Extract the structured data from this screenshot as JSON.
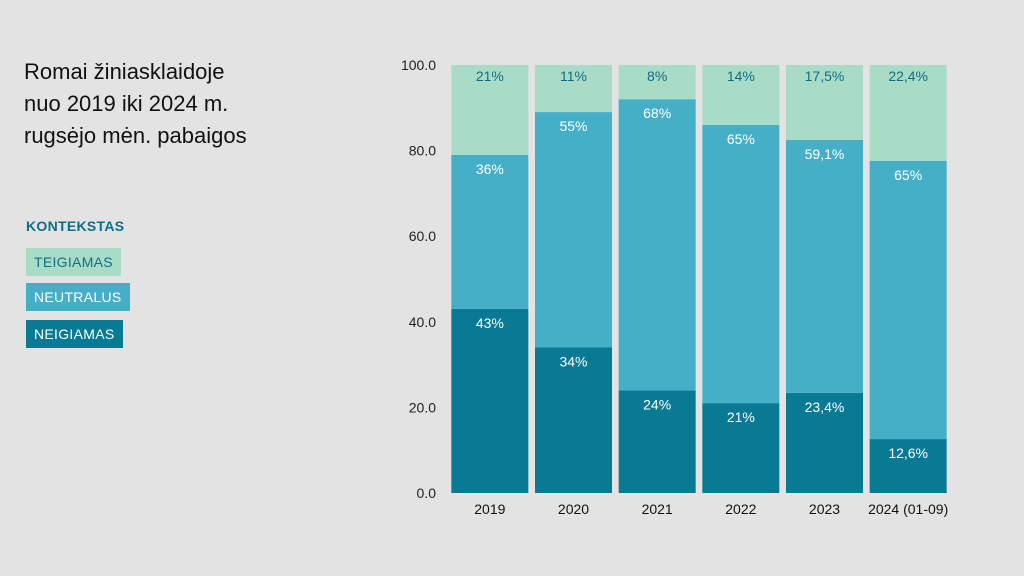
{
  "title_lines": [
    "Romai žiniasklaidoje",
    "nuo 2019 iki 2024 m.",
    "rugsėjo mėn. pabaigos"
  ],
  "legend": {
    "heading": "KONTEKSTAS",
    "items": [
      {
        "label": "TEIGIAMAS",
        "bg": "#a8dcc7",
        "fg": "#0d6f87"
      },
      {
        "label": "NEUTRALUS",
        "bg": "#46afc8",
        "fg": "#ffffff"
      },
      {
        "label": "NEIGIAMAS",
        "bg": "#087a94",
        "fg": "#ffffff"
      }
    ]
  },
  "chart_data": {
    "type": "bar",
    "stacked": true,
    "categories": [
      "2019",
      "2020",
      "2021",
      "2022",
      "2023",
      "2024 (01-09)"
    ],
    "series": [
      {
        "name": "NEIGIAMAS",
        "color": "#087a94",
        "label_color": "#ffffff",
        "values": [
          43,
          34,
          24,
          21,
          23.4,
          12.6
        ],
        "labels": [
          "43%",
          "34%",
          "24%",
          "21%",
          "23,4%",
          "12,6%"
        ]
      },
      {
        "name": "NEUTRALUS",
        "color": "#46afc8",
        "label_color": "#ffffff",
        "values": [
          36,
          55,
          68,
          65,
          59.1,
          65
        ],
        "labels": [
          "36%",
          "55%",
          "68%",
          "65%",
          "59,1%",
          "65%"
        ]
      },
      {
        "name": "TEIGIAMAS",
        "color": "#a8dcc7",
        "label_color": "#0d6f87",
        "values": [
          21,
          11,
          8,
          14,
          17.5,
          22.4
        ],
        "labels": [
          "21%",
          "11%",
          "8%",
          "14%",
          "17,5%",
          "22,4%"
        ]
      }
    ],
    "yticks": [
      "0.0",
      "20.0",
      "40.0",
      "60.0",
      "80.0",
      "100.0"
    ],
    "ylim": [
      0,
      100
    ],
    "grid": false
  }
}
